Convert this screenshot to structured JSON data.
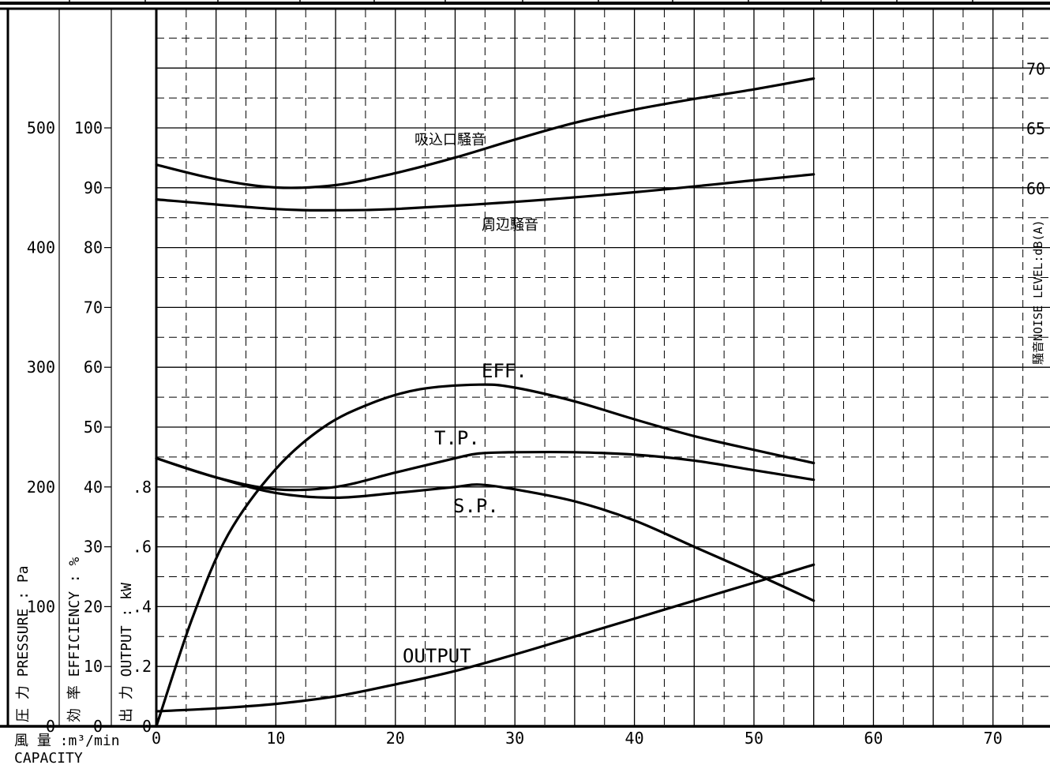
{
  "chart_data": {
    "type": "line",
    "xlabel_jp": "風 量 :m³/min",
    "xlabel_en": "CAPACITY",
    "x_ticks": [
      0,
      10,
      20,
      30,
      40,
      50,
      60,
      70
    ],
    "xlim": [
      0,
      75
    ],
    "axes": {
      "pressure": {
        "label": "圧 力 PRESSURE : Pa",
        "ticks": [
          0,
          100,
          200,
          300,
          400,
          500
        ],
        "ylim": [
          0,
          600
        ]
      },
      "efficiency": {
        "label": "効 率 EFFICIENCY : %",
        "ticks": [
          0,
          10,
          20,
          30,
          40,
          50,
          60,
          70,
          80,
          90,
          100
        ],
        "ylim": [
          0,
          120
        ]
      },
      "output": {
        "label": "出 力 OUTPUT : kW",
        "ticks": [
          "0",
          ".2",
          ".4",
          ".6",
          ".8"
        ],
        "tick_values": [
          0,
          0.2,
          0.4,
          0.6,
          0.8
        ],
        "ylim": [
          0,
          2.4
        ]
      },
      "noise": {
        "label": "騒音NOISE LEVEL:dB(A)",
        "ticks": [
          60,
          65,
          70
        ],
        "ylim": [
          0,
          72
        ]
      }
    },
    "series": [
      {
        "name": "吸込口騒音",
        "axis": "noise",
        "x": [
          0,
          5,
          10,
          15,
          20,
          25,
          30,
          35,
          40,
          45,
          50,
          55
        ],
        "y": [
          62.0,
          60.8,
          60.1,
          60.3,
          61.3,
          62.6,
          64.1,
          65.5,
          66.6,
          67.5,
          68.3,
          69.2
        ]
      },
      {
        "name": "周辺騒音",
        "axis": "noise",
        "x": [
          0,
          10,
          15,
          20,
          30,
          40,
          50,
          55
        ],
        "y": [
          59.1,
          58.3,
          58.2,
          58.3,
          58.9,
          59.7,
          60.7,
          61.2
        ]
      },
      {
        "name": "EFF.",
        "axis": "efficiency",
        "x": [
          0,
          3,
          6,
          10,
          14,
          18,
          22,
          27,
          30,
          35,
          40,
          45,
          50,
          55
        ],
        "y": [
          0,
          18,
          32,
          43,
          50,
          54,
          56.3,
          57.1,
          56.6,
          54.3,
          51.3,
          48.5,
          46.2,
          44.0
        ]
      },
      {
        "name": "T.P.",
        "axis": "pressure",
        "x": [
          0,
          5,
          10,
          15,
          20,
          25,
          27,
          30,
          35,
          40,
          45,
          50,
          55
        ],
        "y": [
          224,
          208,
          198,
          200,
          212,
          224,
          228,
          229,
          229,
          227,
          222,
          214,
          206
        ]
      },
      {
        "name": "S.P.",
        "axis": "pressure",
        "x": [
          0,
          5,
          10,
          15,
          20,
          25,
          27,
          30,
          35,
          40,
          45,
          50,
          55
        ],
        "y": [
          224,
          208,
          195,
          191,
          195,
          200,
          202,
          198,
          188,
          172,
          150,
          128,
          105
        ]
      },
      {
        "name": "OUTPUT",
        "axis": "output",
        "x": [
          0,
          5,
          10,
          15,
          20,
          25,
          30,
          35,
          40,
          45,
          50,
          55
        ],
        "y": [
          0.05,
          0.06,
          0.075,
          0.1,
          0.14,
          0.185,
          0.24,
          0.3,
          0.36,
          0.42,
          0.48,
          0.54
        ]
      }
    ]
  }
}
